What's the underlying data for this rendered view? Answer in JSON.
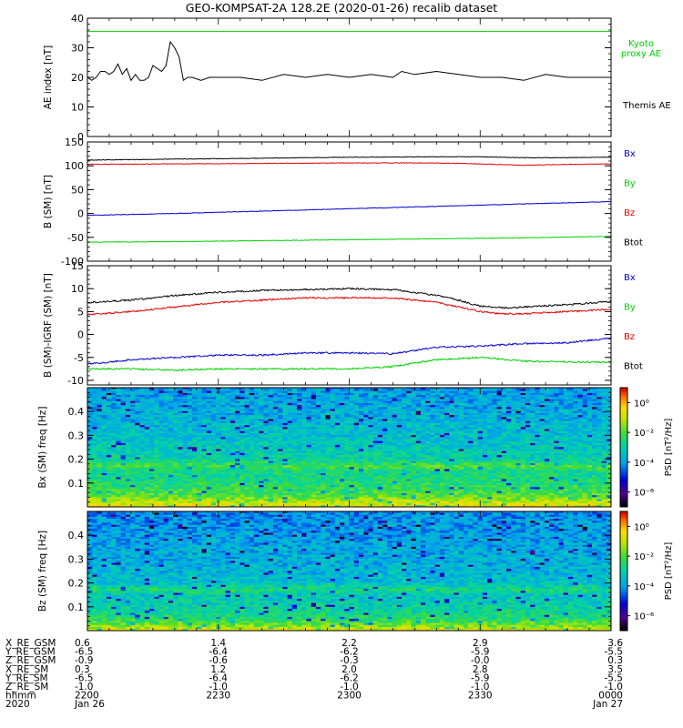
{
  "title": "GEO-KOMPSAT-2A 128.2E (2020-01-26) recalib dataset",
  "colors": {
    "black": "#000000",
    "red": "#e00000",
    "blue": "#0000d0",
    "green": "#00d000"
  },
  "time_ticks": [
    "2200",
    "2230",
    "2300",
    "2330",
    "0000"
  ],
  "chart_data": [
    {
      "type": "line",
      "ylabel": "AE index [nT]",
      "ylim": [
        0,
        40
      ],
      "yticks": [
        0,
        10,
        20,
        30,
        40
      ],
      "legend": [
        {
          "name": "Kyoto proxy AE",
          "color": "#00d000"
        },
        {
          "name": "Themis AE",
          "color": "#000000"
        }
      ],
      "series": [
        {
          "name": "Kyoto proxy AE",
          "color": "#00d000",
          "x": [
            0,
            120
          ],
          "values": [
            35.5,
            35.5
          ]
        },
        {
          "name": "Themis AE",
          "color": "#000000",
          "x": [
            0,
            1,
            2,
            3,
            4,
            5,
            6,
            7,
            8,
            9,
            10,
            11,
            12,
            13,
            14,
            15,
            16,
            17,
            18,
            19,
            20,
            21,
            22,
            23,
            24,
            26,
            28,
            30,
            35,
            40,
            45,
            50,
            55,
            60,
            65,
            70,
            72,
            75,
            80,
            85,
            90,
            95,
            100,
            105,
            110,
            115,
            120
          ],
          "values": [
            20,
            19,
            20,
            22,
            22,
            21,
            22,
            24.5,
            21,
            23,
            19,
            21,
            19,
            19,
            20,
            24,
            23,
            22,
            24,
            32,
            30,
            27,
            19,
            20,
            20,
            19,
            20,
            20,
            20,
            19,
            21,
            20,
            21,
            20,
            21,
            20,
            22,
            21,
            22,
            21,
            20,
            20,
            19,
            21,
            20,
            20,
            20
          ]
        }
      ]
    },
    {
      "type": "line",
      "ylabel": "B (SM) [nT]",
      "ylim": [
        -100,
        150
      ],
      "yticks": [
        -100,
        -50,
        0,
        50,
        100,
        150
      ],
      "legend": [
        {
          "name": "Bx",
          "color": "#0000d0"
        },
        {
          "name": "By",
          "color": "#00d000"
        },
        {
          "name": "Bz",
          "color": "#e00000"
        },
        {
          "name": "Btot",
          "color": "#000000"
        }
      ],
      "series": [
        {
          "name": "Btot",
          "color": "#000000",
          "x": [
            0,
            20,
            40,
            60,
            80,
            90,
            100,
            110,
            120
          ],
          "values": [
            112,
            114,
            116,
            118,
            119,
            119,
            117,
            117,
            118
          ]
        },
        {
          "name": "Bz",
          "color": "#e00000",
          "x": [
            0,
            20,
            40,
            60,
            80,
            90,
            100,
            110,
            120
          ],
          "values": [
            103,
            104,
            105,
            106,
            106,
            104,
            101,
            103,
            104
          ]
        },
        {
          "name": "Bx",
          "color": "#0000d0",
          "x": [
            0,
            20,
            40,
            60,
            80,
            100,
            120
          ],
          "values": [
            -4,
            0,
            5,
            10,
            15,
            20,
            25
          ]
        },
        {
          "name": "By",
          "color": "#00d000",
          "x": [
            0,
            20,
            40,
            60,
            80,
            100,
            120
          ],
          "values": [
            -60,
            -59,
            -57,
            -55,
            -53,
            -51,
            -48
          ]
        }
      ]
    },
    {
      "type": "line",
      "ylabel": "B (SM)-IGRF (SM) [nT]",
      "ylim": [
        -11,
        15
      ],
      "yticks": [
        -10,
        -5,
        0,
        5,
        10,
        15
      ],
      "legend": [
        {
          "name": "Bx",
          "color": "#0000d0"
        },
        {
          "name": "By",
          "color": "#00d000"
        },
        {
          "name": "Bz",
          "color": "#e00000"
        },
        {
          "name": "Btot",
          "color": "#000000"
        }
      ],
      "series": [
        {
          "name": "Btot",
          "color": "#000000",
          "x": [
            0,
            10,
            20,
            30,
            40,
            50,
            60,
            70,
            80,
            85,
            90,
            95,
            100,
            110,
            120
          ],
          "values": [
            7,
            7.5,
            8.5,
            9.2,
            9.6,
            9.8,
            10,
            9.8,
            8.5,
            7.5,
            6.2,
            5.8,
            6,
            6.5,
            7.2
          ]
        },
        {
          "name": "Bz",
          "color": "#e00000",
          "x": [
            0,
            10,
            20,
            30,
            40,
            50,
            60,
            70,
            80,
            85,
            90,
            95,
            100,
            110,
            120
          ],
          "values": [
            4.3,
            5,
            6,
            7,
            7.5,
            8,
            8,
            8,
            7,
            6,
            5,
            4.5,
            4.5,
            5,
            5.5
          ]
        },
        {
          "name": "Bx",
          "color": "#0000d0",
          "x": [
            0,
            10,
            20,
            30,
            40,
            50,
            60,
            70,
            80,
            90,
            100,
            110,
            120
          ],
          "values": [
            -6.5,
            -5.5,
            -5,
            -4.5,
            -4.5,
            -4,
            -4,
            -4.2,
            -2.8,
            -2.5,
            -2,
            -1.8,
            -0.8
          ]
        },
        {
          "name": "By",
          "color": "#00d000",
          "x": [
            0,
            10,
            20,
            30,
            40,
            50,
            60,
            70,
            80,
            90,
            100,
            110,
            120
          ],
          "values": [
            -7.5,
            -7.5,
            -7.8,
            -7.5,
            -7.5,
            -7.5,
            -7.5,
            -7,
            -5.5,
            -5,
            -5.8,
            -6,
            -6
          ]
        }
      ]
    },
    {
      "type": "heatmap",
      "ylabel": "Bx (SM) freq [Hz]",
      "ylim": [
        0,
        0.5
      ],
      "yticks": [
        0.1,
        0.2,
        0.3,
        0.4
      ],
      "colorbar": {
        "label": "PSD [nT²/Hz]",
        "ticks": [
          "10⁰",
          "10⁻²",
          "10⁻⁴",
          "10⁻⁶"
        ],
        "range_log10": [
          -7,
          1
        ]
      },
      "log10_psd_profile": {
        "freq": [
          0,
          0.02,
          0.05,
          0.1,
          0.15,
          0.17,
          0.2,
          0.3,
          0.4,
          0.5
        ],
        "value": [
          -0.5,
          -1,
          -2,
          -2.5,
          -2.8,
          -2,
          -3,
          -3.5,
          -3.8,
          -4
        ]
      }
    },
    {
      "type": "heatmap",
      "ylabel": "Bz (SM) freq [Hz]",
      "ylim": [
        0,
        0.5
      ],
      "yticks": [
        0.1,
        0.2,
        0.3,
        0.4
      ],
      "colorbar": {
        "label": "PSD [nT²/Hz]",
        "ticks": [
          "10⁰",
          "10⁻²",
          "10⁻⁴",
          "10⁻⁶"
        ],
        "range_log10": [
          -7,
          1
        ]
      },
      "log10_psd_profile": {
        "freq": [
          0,
          0.02,
          0.05,
          0.1,
          0.15,
          0.17,
          0.2,
          0.3,
          0.4,
          0.5
        ],
        "value": [
          -0.5,
          -1.5,
          -2.5,
          -3,
          -3.3,
          -2.5,
          -3.5,
          -3.8,
          -4,
          -4.2
        ]
      }
    }
  ],
  "ephemeris": {
    "labels": [
      "X_RE_GSM",
      "Y_RE_GSM",
      "Z_RE_GSM",
      "X_RE_SM",
      "Y_RE_SM",
      "Z_RE_SM",
      "hhmm",
      "2020"
    ],
    "columns": [
      [
        "0.6",
        "-6.5",
        "-0.9",
        "0.3",
        "-6.5",
        "-1.0",
        "2200",
        "Jan 26"
      ],
      [
        "1.4",
        "-6.4",
        "-0.6",
        "1.2",
        "-6.4",
        "-1.0",
        "2230",
        ""
      ],
      [
        "2.2",
        "-6.2",
        "-0.3",
        "2.0",
        "-6.2",
        "-1.0",
        "2300",
        ""
      ],
      [
        "2.9",
        "-5.9",
        "-0.0",
        "2.8",
        "-5.9",
        "-1.0",
        "2330",
        ""
      ],
      [
        "3.6",
        "-5.5",
        "0.3",
        "3.5",
        "-5.5",
        "-1.0",
        "0000",
        "Jan 27"
      ]
    ]
  }
}
